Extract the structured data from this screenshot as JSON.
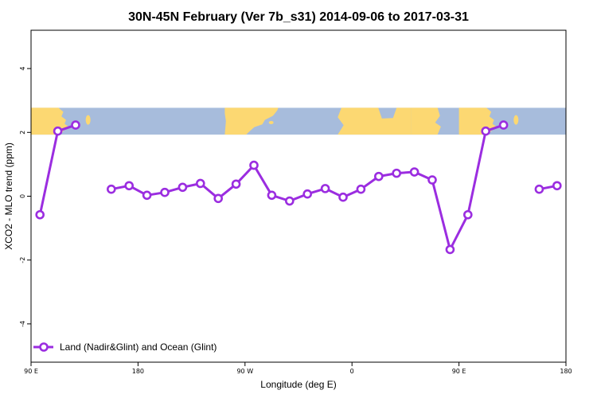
{
  "chart_data": {
    "type": "line",
    "title": "30N-45N February (Ver 7b_s31)   2014-09-06 to 2017-03-31",
    "xlabel": "Longitude (deg E)",
    "ylabel": "XCO2 - MLO trend (ppm)",
    "xlim": [
      90,
      450
    ],
    "ylim": [
      -5.2,
      5.2
    ],
    "x_ticks": [
      {
        "value": 90,
        "label": "90 E"
      },
      {
        "value": 180,
        "label": "180"
      },
      {
        "value": 270,
        "label": "90 W"
      },
      {
        "value": 360,
        "label": "0"
      },
      {
        "value": 450,
        "label": "90 E"
      },
      {
        "value": 540,
        "label": "180"
      }
    ],
    "y_ticks": [
      {
        "value": -4,
        "label": "-4"
      },
      {
        "value": -2,
        "label": "-2"
      },
      {
        "value": 0,
        "label": "0"
      },
      {
        "value": 2,
        "label": "2"
      },
      {
        "value": 4,
        "label": "4"
      }
    ],
    "grid": false,
    "legend_position": "bottom-left",
    "map_band": {
      "y_range": [
        1.93,
        2.77
      ],
      "land_color": "#fcd872",
      "ocean_color": "#a7bcdc"
    },
    "series": [
      {
        "name": "Land (Nadir&Glint) and Ocean (Glint)",
        "color": "#9b2de0",
        "points": [
          [
            97.5,
            -0.58
          ],
          [
            112.5,
            2.04
          ],
          [
            127.5,
            2.23
          ],
          null,
          [
            157.5,
            0.22
          ],
          [
            172.5,
            0.33
          ],
          [
            187.5,
            0.03
          ],
          [
            202.5,
            0.12
          ],
          [
            217.5,
            0.28
          ],
          [
            232.5,
            0.4
          ],
          [
            247.5,
            -0.07
          ],
          [
            262.5,
            0.38
          ],
          [
            277.5,
            0.97
          ],
          [
            292.5,
            0.03
          ],
          [
            307.5,
            -0.15
          ],
          [
            322.5,
            0.07
          ],
          [
            337.5,
            0.24
          ],
          [
            352.5,
            -0.03
          ],
          [
            367.5,
            0.22
          ],
          [
            382.5,
            0.62
          ],
          [
            397.5,
            0.72
          ],
          [
            412.5,
            0.76
          ],
          [
            427.5,
            0.51
          ],
          [
            442.5,
            -1.67
          ],
          [
            457.5,
            -0.58
          ],
          [
            472.5,
            2.04
          ],
          [
            487.5,
            2.23
          ],
          null,
          [
            517.5,
            0.22
          ],
          [
            532.5,
            0.33
          ]
        ]
      }
    ]
  }
}
